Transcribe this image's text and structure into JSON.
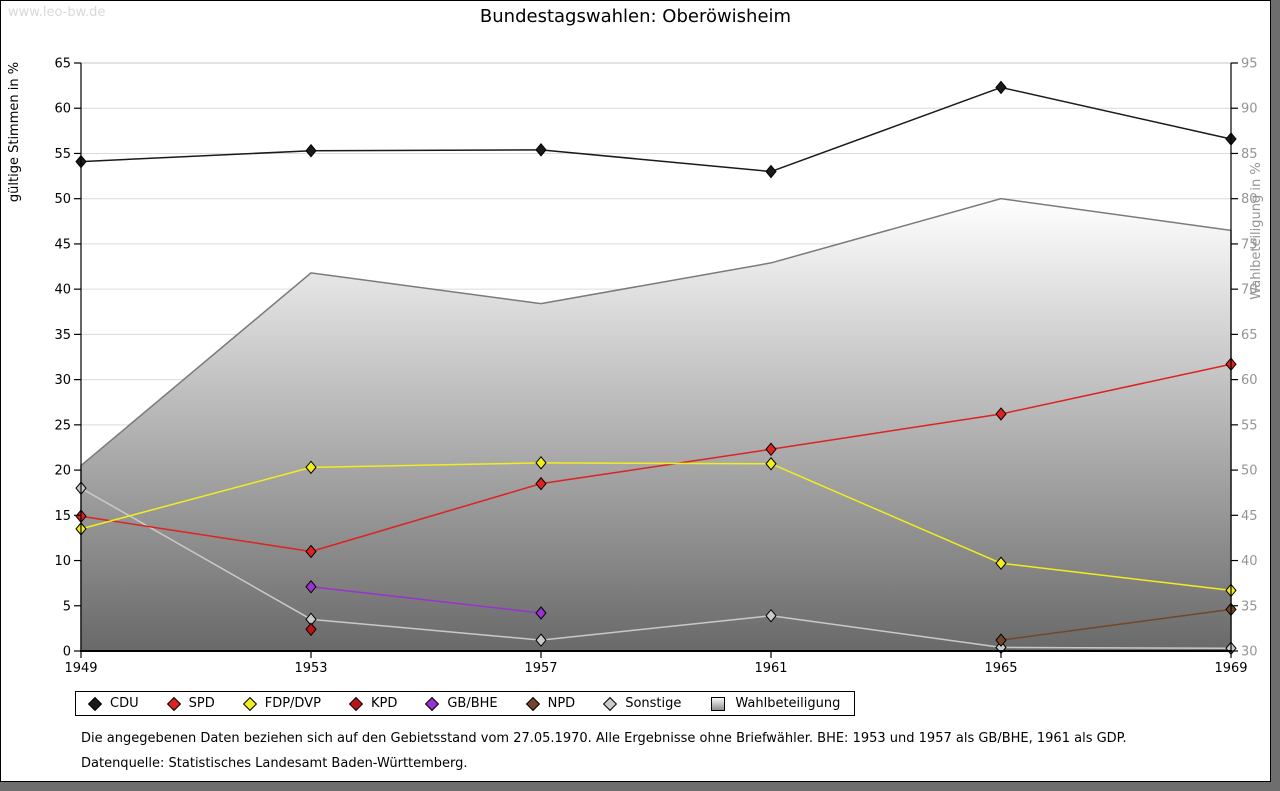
{
  "watermark": "www.leo-bw.de",
  "title": "Bundestagswahlen: Oberöwisheim",
  "footnotes": [
    "Die angegebenen Daten beziehen sich auf den Gebietsstand vom 27.05.1970. Alle Ergebnisse ohne Briefwähler. BHE: 1953 und 1957 als GB/BHE, 1961 als GDP.",
    "Datenquelle: Statistisches Landesamt Baden-Württemberg."
  ],
  "chart_data": {
    "type": "line",
    "x": [
      1949,
      1953,
      1957,
      1961,
      1965,
      1969
    ],
    "left_axis": {
      "label": "gültige Stimmen in %",
      "min": 0,
      "max": 65,
      "step": 5
    },
    "right_axis": {
      "label": "Wahlbeteiligung in %",
      "min": 30,
      "max": 95,
      "step": 5
    },
    "grid": true,
    "legend_position": "bottom",
    "series": [
      {
        "name": "CDU",
        "color": "#1a1a1a",
        "axis": "left",
        "values": [
          54.1,
          55.3,
          55.4,
          53.0,
          62.3,
          56.6
        ]
      },
      {
        "name": "SPD",
        "color": "#dd2222",
        "axis": "left",
        "values": [
          14.9,
          11.0,
          18.5,
          22.3,
          26.2,
          31.7
        ]
      },
      {
        "name": "FDP/DVP",
        "color": "#f0ee1e",
        "axis": "left",
        "values": [
          13.5,
          20.3,
          20.8,
          20.7,
          9.7,
          6.7
        ]
      },
      {
        "name": "KPD",
        "color": "#bb1414",
        "axis": "left",
        "values": [
          null,
          2.4,
          null,
          null,
          null,
          null
        ]
      },
      {
        "name": "GB/BHE",
        "color": "#9933cc",
        "axis": "left",
        "values": [
          null,
          7.1,
          4.2,
          null,
          null,
          null
        ]
      },
      {
        "name": "NPD",
        "color": "#74452a",
        "axis": "left",
        "values": [
          null,
          null,
          null,
          null,
          1.2,
          4.6
        ]
      },
      {
        "name": "Sonstige",
        "color": "#c9c9c9",
        "axis": "left",
        "values": [
          18.0,
          3.5,
          1.2,
          3.9,
          0.4,
          0.3
        ]
      }
    ],
    "area_series": {
      "name": "Wahlbeteiligung",
      "axis": "right",
      "values": [
        50.5,
        71.8,
        68.4,
        72.9,
        80.0,
        76.5
      ],
      "fill_top": "#ffffff",
      "fill_bottom": "#696969",
      "outline": "#7a7a7a"
    }
  }
}
